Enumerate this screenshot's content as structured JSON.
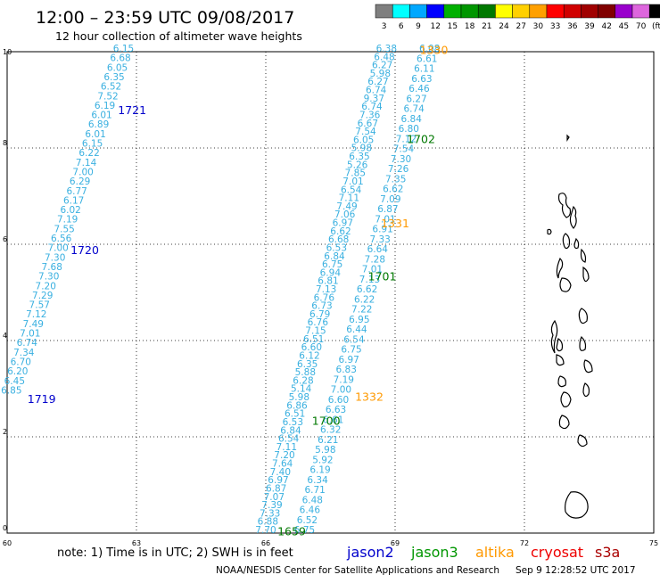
{
  "header": {
    "title": "12:00 – 23:59 UTC 09/08/2017",
    "subtitle": "12 hour collection of altimeter wave heights"
  },
  "scale": {
    "labels": [
      "3",
      "6",
      "9",
      "12",
      "15",
      "18",
      "21",
      "24",
      "27",
      "30",
      "33",
      "36",
      "39",
      "42",
      "45",
      "70",
      "(ft)"
    ],
    "colors": [
      "#7f7f7f",
      "#00ffff",
      "#00a8ff",
      "#0000ff",
      "#00b000",
      "#009600",
      "#007800",
      "#ffff00",
      "#ffd000",
      "#ffa000",
      "#ff0000",
      "#d00000",
      "#a00000",
      "#800000",
      "#9900cc",
      "#dd66dd",
      "#000000"
    ]
  },
  "axes": {
    "x_ticks": [
      "60",
      "63",
      "66",
      "69",
      "72",
      "75"
    ],
    "y_ticks": [
      "0",
      "2",
      "4",
      "6",
      "8",
      "10"
    ]
  },
  "tracks": [
    {
      "name": "track-1719-1721",
      "color": "#3ab0e0",
      "start": [
        60.1,
        2.9
      ],
      "end": [
        62.7,
        10.0
      ],
      "values": [
        "6.85",
        "6.45",
        "6.20",
        "6.70",
        "7.34",
        "6.74",
        "7.01",
        "7.49",
        "7.12",
        "7.57",
        "7.29",
        "7.20",
        "7.30",
        "7.68",
        "7.30",
        "7.00",
        "6.56",
        "7.55",
        "7.19",
        "6.02",
        "6.17",
        "6.77",
        "6.29",
        "7.00",
        "7.14",
        "6.22",
        "6.15",
        "6.01",
        "6.89",
        "6.01",
        "6.19",
        "7.52",
        "6.52",
        "6.35",
        "6.05",
        "6.68",
        "6.15"
      ]
    },
    {
      "name": "track-1659-1702",
      "color": "#3ab0e0",
      "start": [
        66.0,
        0.0
      ],
      "end": [
        68.8,
        10.0
      ],
      "values": [
        "7.70",
        "6.88",
        "7.33",
        "7.39",
        "7.07",
        "6.87",
        "6.97",
        "7.40",
        "7.64",
        "7.20",
        "7.11",
        "6.54",
        "6.84",
        "6.53",
        "6.51",
        "6.86",
        "5.98",
        "5.14",
        "6.28",
        "5.88",
        "6.35",
        "6.12",
        "6.60",
        "6.51",
        "7.15",
        "6.76",
        "6.79",
        "6.73",
        "6.76",
        "7.13",
        "6.81",
        "6.94",
        "6.75",
        "6.84",
        "6.53",
        "6.68",
        "6.62",
        "6.97",
        "7.06",
        "7.49",
        "7.11",
        "6.54",
        "7.01",
        "7.85",
        "5.26",
        "6.35",
        "5.98",
        "6.05",
        "7.54",
        "6.67",
        "7.36",
        "6.74",
        "9.37",
        "6.74",
        "6.27",
        "5.98",
        "6.27",
        "6.48",
        "6.38"
      ]
    },
    {
      "name": "track-1330-1332",
      "color": "#3ab0e0",
      "start": [
        66.9,
        0.0
      ],
      "end": [
        69.8,
        10.0
      ],
      "values": [
        "6.75",
        "6.52",
        "6.46",
        "6.48",
        "6.71",
        "6.34",
        "6.19",
        "5.92",
        "5.98",
        "6.21",
        "6.32",
        "6.61",
        "6.63",
        "6.60",
        "7.00",
        "7.19",
        "6.83",
        "6.97",
        "6.75",
        "6.54",
        "6.44",
        "6.95",
        "7.22",
        "6.22",
        "6.62",
        "7.13",
        "7.01",
        "7.28",
        "6.64",
        "7.33",
        "6.91",
        "7.01",
        "6.87",
        "7.09",
        "6.62",
        "7.35",
        "7.26",
        "7.30",
        "7.54",
        "7.12",
        "6.80",
        "6.84",
        "6.74",
        "6.27",
        "6.46",
        "6.63",
        "6.11",
        "6.61",
        "6.08"
      ]
    }
  ],
  "pass_labels": [
    {
      "text": "1719",
      "color": "#0000cc",
      "lon": 60.8,
      "lat": 2.7
    },
    {
      "text": "1720",
      "color": "#0000cc",
      "lon": 61.8,
      "lat": 5.8
    },
    {
      "text": "1721",
      "color": "#0000cc",
      "lon": 62.9,
      "lat": 8.7
    },
    {
      "text": "1659",
      "color": "#007800",
      "lon": 66.6,
      "lat": -0.05
    },
    {
      "text": "1700",
      "color": "#007800",
      "lon": 67.4,
      "lat": 2.25
    },
    {
      "text": "1701",
      "color": "#007800",
      "lon": 68.7,
      "lat": 5.25
    },
    {
      "text": "1702",
      "color": "#007800",
      "lon": 69.6,
      "lat": 8.1
    },
    {
      "text": "1332",
      "color": "#ff9900",
      "lon": 68.4,
      "lat": 2.75
    },
    {
      "text": "1331",
      "color": "#ff9900",
      "lon": 69.0,
      "lat": 6.35
    },
    {
      "text": "1330",
      "color": "#ff9900",
      "lon": 69.9,
      "lat": 9.95
    }
  ],
  "footer": {
    "note": "note:  1) Time is in UTC;  2) SWH is in feet",
    "missions": [
      {
        "name": "jason2",
        "color": "#0000cc"
      },
      {
        "name": "jason3",
        "color": "#009600"
      },
      {
        "name": "altika",
        "color": "#ff9900"
      },
      {
        "name": "cryosat",
        "color": "#ee0000"
      },
      {
        "name": "s3a",
        "color": "#aa0000"
      }
    ],
    "credit": "NOAA/NESDIS Center for Satellite Applications and Research",
    "timestamp": "Sep  9 12:28:52 UTC 2017"
  }
}
